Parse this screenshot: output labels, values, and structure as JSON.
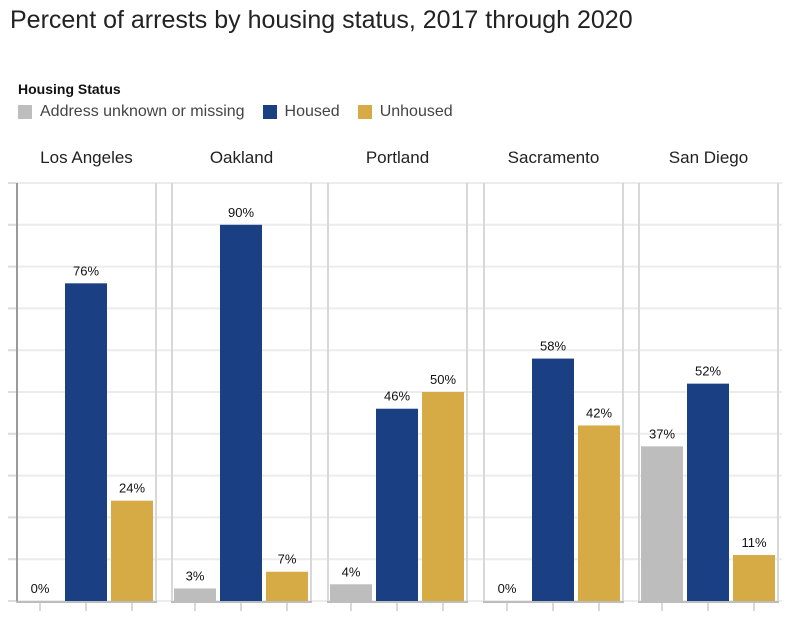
{
  "title": "Percent of arrests by housing status, 2017 through 2020",
  "legend": {
    "title": "Housing Status",
    "items": [
      {
        "label": "Address unknown or missing",
        "color": "#bdbdbd"
      },
      {
        "label": "Housed",
        "color": "#1a3f82"
      },
      {
        "label": "Unhoused",
        "color": "#d6ab46"
      }
    ]
  },
  "chart_data": {
    "type": "bar",
    "ylim": [
      0,
      100
    ],
    "series": [
      {
        "name": "Address unknown or missing",
        "color": "#bdbdbd"
      },
      {
        "name": "Housed",
        "color": "#1a3f82"
      },
      {
        "name": "Unhoused",
        "color": "#d6ab46"
      }
    ],
    "panels": [
      {
        "name": "Los Angeles",
        "values": [
          0,
          76,
          24
        ],
        "labels": [
          "0%",
          "76%",
          "24%"
        ]
      },
      {
        "name": "Oakland",
        "values": [
          3,
          90,
          7
        ],
        "labels": [
          "3%",
          "90%",
          "7%"
        ]
      },
      {
        "name": "Portland",
        "values": [
          4,
          46,
          50
        ],
        "labels": [
          "4%",
          "46%",
          "50%"
        ]
      },
      {
        "name": "Sacramento",
        "values": [
          0,
          58,
          42
        ],
        "labels": [
          "0%",
          "58%",
          "42%"
        ]
      },
      {
        "name": "San Diego",
        "values": [
          37,
          52,
          11
        ],
        "labels": [
          "37%",
          "52%",
          "11%"
        ]
      }
    ]
  }
}
